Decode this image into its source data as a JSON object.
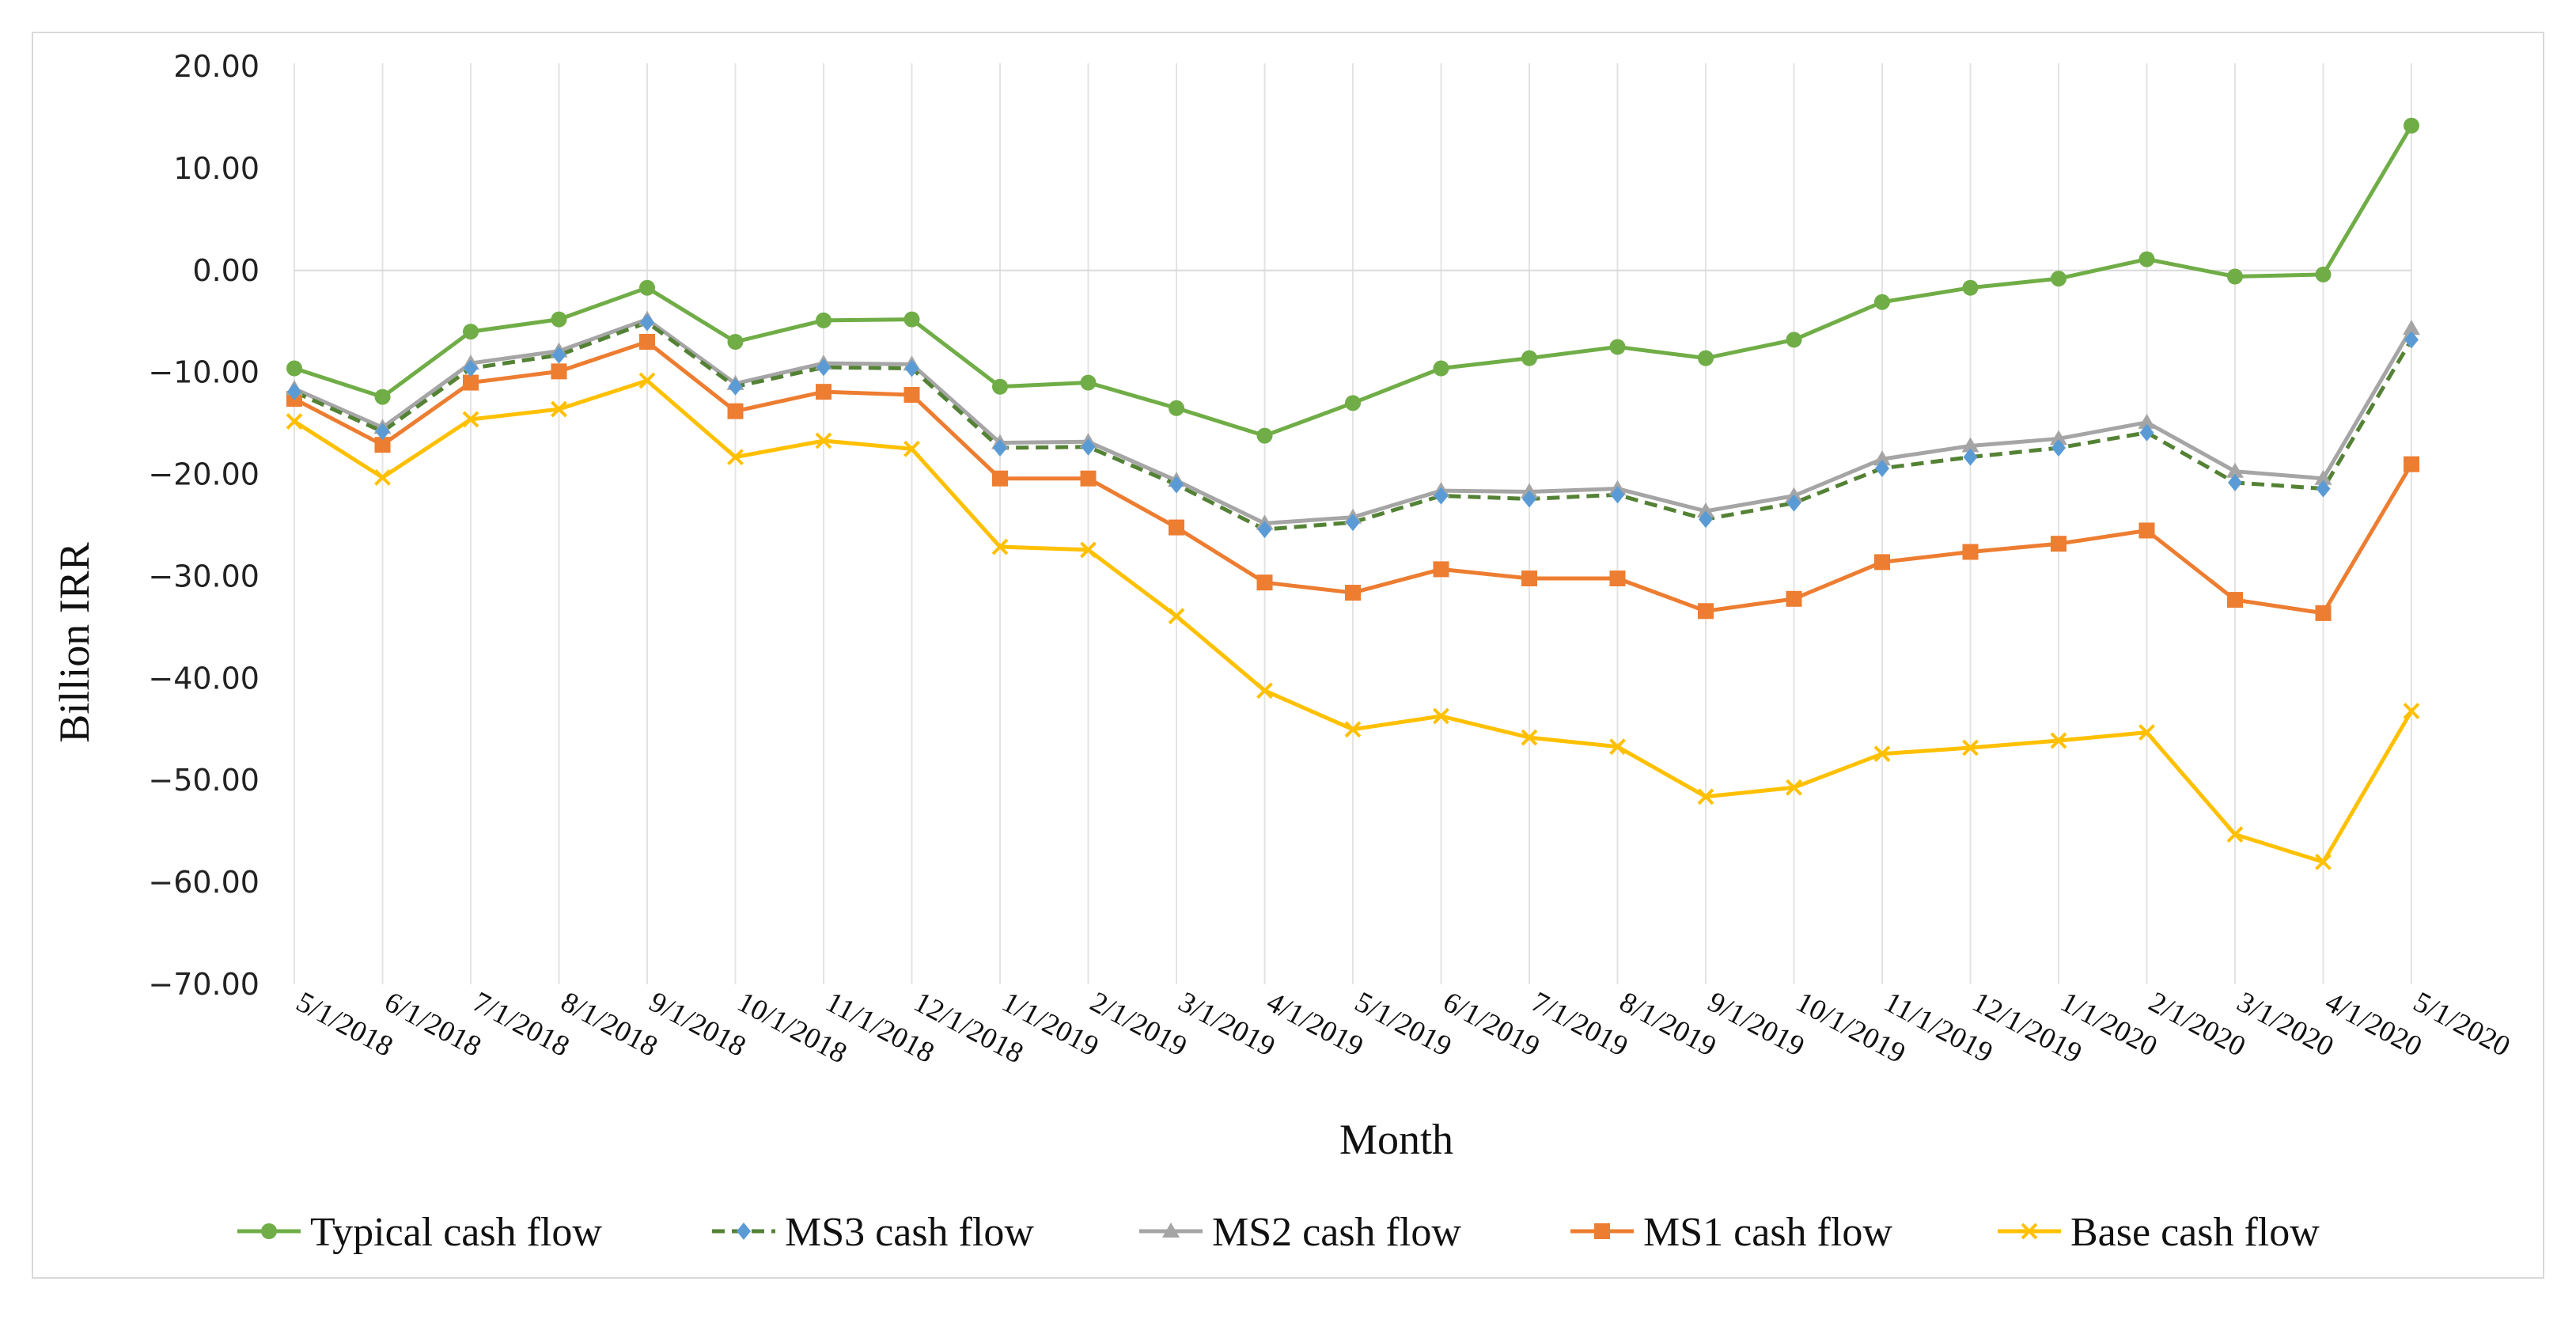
{
  "chart_data": {
    "type": "line",
    "title": "",
    "xlabel": "Month",
    "ylabel": "Billion IRR",
    "ylim": [
      -70,
      20
    ],
    "ytick_values": [
      20,
      10,
      0,
      -10,
      -20,
      -30,
      -40,
      -50,
      -60,
      -70
    ],
    "ytick_labels": [
      "20.00",
      "10.00",
      "0.00",
      "−10.00",
      "−20.00",
      "−30.00",
      "−40.00",
      "−50.00",
      "−60.00",
      "−70.00"
    ],
    "grid": "vertical",
    "legend_position": "bottom",
    "categories": [
      "5/1/2018",
      "6/1/2018",
      "7/1/2018",
      "8/1/2018",
      "9/1/2018",
      "10/1/2018",
      "11/1/2018",
      "12/1/2018",
      "1/1/2019",
      "2/1/2019",
      "3/1/2019",
      "4/1/2019",
      "5/1/2019",
      "6/1/2019",
      "7/1/2019",
      "8/1/2019",
      "9/1/2019",
      "10/1/2019",
      "11/1/2019",
      "12/1/2019",
      "1/1/2020",
      "2/1/2020",
      "3/1/2020",
      "4/1/2020",
      "5/1/2020"
    ],
    "series": [
      {
        "name": "Typical cash flow",
        "color": "#70ad47",
        "marker": "circle",
        "dash": "solid",
        "values": [
          -9.6,
          -12.4,
          -6.0,
          -4.8,
          -1.7,
          -7.0,
          -4.9,
          -4.8,
          -11.4,
          -11.0,
          -13.5,
          -16.2,
          -13.0,
          -9.6,
          -8.6,
          -7.5,
          -8.6,
          -6.8,
          -3.1,
          -1.7,
          -0.8,
          1.1,
          -0.6,
          -0.4,
          14.2
        ]
      },
      {
        "name": "MS3 cash flow",
        "color": "#548235",
        "marker_color": "#5b9bd5",
        "marker": "diamond",
        "dash": "dashed",
        "values": [
          -11.9,
          -15.8,
          -9.6,
          -8.3,
          -5.1,
          -11.4,
          -9.5,
          -9.6,
          -17.4,
          -17.3,
          -21.0,
          -25.4,
          -24.7,
          -22.1,
          -22.4,
          -22.0,
          -24.4,
          -22.8,
          -19.4,
          -18.3,
          -17.4,
          -15.9,
          -20.8,
          -21.4,
          -6.8
        ]
      },
      {
        "name": "MS2 cash flow",
        "color": "#a5a5a5",
        "marker": "triangle",
        "dash": "solid",
        "values": [
          -11.6,
          -15.4,
          -9.1,
          -7.9,
          -4.8,
          -11.1,
          -9.1,
          -9.2,
          -16.9,
          -16.8,
          -20.6,
          -24.8,
          -24.2,
          -21.6,
          -21.7,
          -21.4,
          -23.6,
          -22.1,
          -18.5,
          -17.2,
          -16.5,
          -14.9,
          -19.7,
          -20.4,
          -5.7
        ]
      },
      {
        "name": "MS1 cash flow",
        "color": "#ed7d31",
        "marker": "square",
        "dash": "solid",
        "values": [
          -12.6,
          -17.1,
          -11.0,
          -9.9,
          -7.0,
          -13.8,
          -11.9,
          -12.2,
          -20.4,
          -20.4,
          -25.2,
          -30.6,
          -31.6,
          -29.3,
          -30.2,
          -30.2,
          -33.4,
          -32.2,
          -28.6,
          -27.6,
          -26.8,
          -25.5,
          -32.3,
          -33.6,
          -19.0
        ]
      },
      {
        "name": "Base cash flow",
        "color": "#ffc000",
        "marker": "x",
        "dash": "solid",
        "values": [
          -14.8,
          -20.3,
          -14.6,
          -13.6,
          -10.8,
          -18.3,
          -16.7,
          -17.5,
          -27.1,
          -27.4,
          -33.9,
          -41.2,
          -45.0,
          -43.7,
          -45.8,
          -46.7,
          -51.6,
          -50.7,
          -47.4,
          -46.8,
          -46.1,
          -45.3,
          -55.3,
          -58.0,
          -43.2
        ]
      }
    ]
  }
}
